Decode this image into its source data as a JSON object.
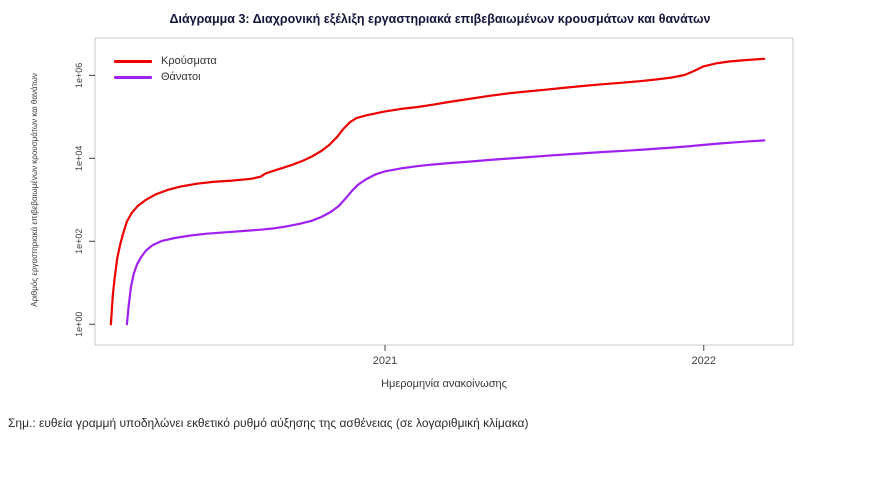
{
  "page": {
    "note": "Σημ.: ευθεία γραμμή υποδηλώνει εκθετικό ρυθμό αύξησης της ασθένειας (σε λογαριθμική κλίμακα)"
  },
  "chart_data": {
    "type": "line",
    "title": "Διάγραμμα 3: Διαχρονική εξέλιξη εργαστηριακά επιβεβαιωμένων κρουσμάτων και θανάτων",
    "xlabel": "Ημερομηνία ανακοίνωσης",
    "ylabel": "Αριθμός εργαστηριακά επιβεβαιωμένων κρουσμάτων και θανάτων",
    "y_scale": "log10",
    "grid": false,
    "legend_position": "top-left",
    "xlim": [
      2020.09,
      2022.28
    ],
    "ylim_log10": [
      -0.5,
      6.9
    ],
    "x_ticks": [
      {
        "value": 2021,
        "label": "2021"
      },
      {
        "value": 2022,
        "label": "2022"
      }
    ],
    "y_ticks": [
      {
        "value": 1,
        "label": "1e+00"
      },
      {
        "value": 100,
        "label": "1e+02"
      },
      {
        "value": 10000,
        "label": "1e+04"
      },
      {
        "value": 1000000,
        "label": "1e+06"
      }
    ],
    "series": [
      {
        "name": "Κρούσματα",
        "color": "#ec0000",
        "points": [
          [
            2020.14,
            1
          ],
          [
            2020.146,
            5
          ],
          [
            2020.152,
            14
          ],
          [
            2020.16,
            40
          ],
          [
            2020.17,
            90
          ],
          [
            2020.18,
            170
          ],
          [
            2020.19,
            300
          ],
          [
            2020.205,
            480
          ],
          [
            2020.225,
            720
          ],
          [
            2020.25,
            1000
          ],
          [
            2020.28,
            1350
          ],
          [
            2020.32,
            1750
          ],
          [
            2020.36,
            2100
          ],
          [
            2020.41,
            2450
          ],
          [
            2020.46,
            2700
          ],
          [
            2020.52,
            2900
          ],
          [
            2020.58,
            3200
          ],
          [
            2020.61,
            3600
          ],
          [
            2020.625,
            4300
          ],
          [
            2020.65,
            5000
          ],
          [
            2020.68,
            5900
          ],
          [
            2020.71,
            7000
          ],
          [
            2020.74,
            8600
          ],
          [
            2020.77,
            11000
          ],
          [
            2020.8,
            15000
          ],
          [
            2020.825,
            21000
          ],
          [
            2020.85,
            33000
          ],
          [
            2020.87,
            52000
          ],
          [
            2020.89,
            74000
          ],
          [
            2020.91,
            93000
          ],
          [
            2020.94,
            108000
          ],
          [
            2020.97,
            121000
          ],
          [
            2021.0,
            135000
          ],
          [
            2021.05,
            155000
          ],
          [
            2021.1,
            172000
          ],
          [
            2021.15,
            196000
          ],
          [
            2021.2,
            228000
          ],
          [
            2021.26,
            268000
          ],
          [
            2021.32,
            315000
          ],
          [
            2021.38,
            362000
          ],
          [
            2021.44,
            405000
          ],
          [
            2021.5,
            448000
          ],
          [
            2021.56,
            498000
          ],
          [
            2021.62,
            552000
          ],
          [
            2021.68,
            608000
          ],
          [
            2021.74,
            662000
          ],
          [
            2021.8,
            722000
          ],
          [
            2021.85,
            792000
          ],
          [
            2021.9,
            885000
          ],
          [
            2021.94,
            1020000
          ],
          [
            2021.97,
            1280000
          ],
          [
            2022.0,
            1650000
          ],
          [
            2022.04,
            1950000
          ],
          [
            2022.08,
            2150000
          ],
          [
            2022.13,
            2330000
          ],
          [
            2022.19,
            2500000
          ]
        ]
      },
      {
        "name": "Θάνατοι",
        "color": "#a020f0",
        "points": [
          [
            2020.19,
            1
          ],
          [
            2020.196,
            3
          ],
          [
            2020.203,
            8
          ],
          [
            2020.212,
            17
          ],
          [
            2020.222,
            28
          ],
          [
            2020.235,
            42
          ],
          [
            2020.25,
            60
          ],
          [
            2020.27,
            80
          ],
          [
            2020.3,
            102
          ],
          [
            2020.34,
            120
          ],
          [
            2020.39,
            138
          ],
          [
            2020.44,
            152
          ],
          [
            2020.5,
            165
          ],
          [
            2020.56,
            178
          ],
          [
            2020.61,
            190
          ],
          [
            2020.65,
            205
          ],
          [
            2020.69,
            228
          ],
          [
            2020.73,
            262
          ],
          [
            2020.77,
            312
          ],
          [
            2020.8,
            385
          ],
          [
            2020.83,
            510
          ],
          [
            2020.855,
            710
          ],
          [
            2020.875,
            1050
          ],
          [
            2020.895,
            1600
          ],
          [
            2020.915,
            2300
          ],
          [
            2020.94,
            3100
          ],
          [
            2020.97,
            4100
          ],
          [
            2021.0,
            4850
          ],
          [
            2021.05,
            5700
          ],
          [
            2021.1,
            6450
          ],
          [
            2021.15,
            7100
          ],
          [
            2021.21,
            7750
          ],
          [
            2021.27,
            8400
          ],
          [
            2021.33,
            9150
          ],
          [
            2021.39,
            9900
          ],
          [
            2021.45,
            10700
          ],
          [
            2021.51,
            11550
          ],
          [
            2021.57,
            12450
          ],
          [
            2021.63,
            13350
          ],
          [
            2021.69,
            14250
          ],
          [
            2021.75,
            15200
          ],
          [
            2021.81,
            16200
          ],
          [
            2021.86,
            17200
          ],
          [
            2021.91,
            18300
          ],
          [
            2021.95,
            19400
          ],
          [
            2022.0,
            21000
          ],
          [
            2022.05,
            22800
          ],
          [
            2022.1,
            24300
          ],
          [
            2022.15,
            25800
          ],
          [
            2022.19,
            27000
          ]
        ]
      }
    ]
  }
}
